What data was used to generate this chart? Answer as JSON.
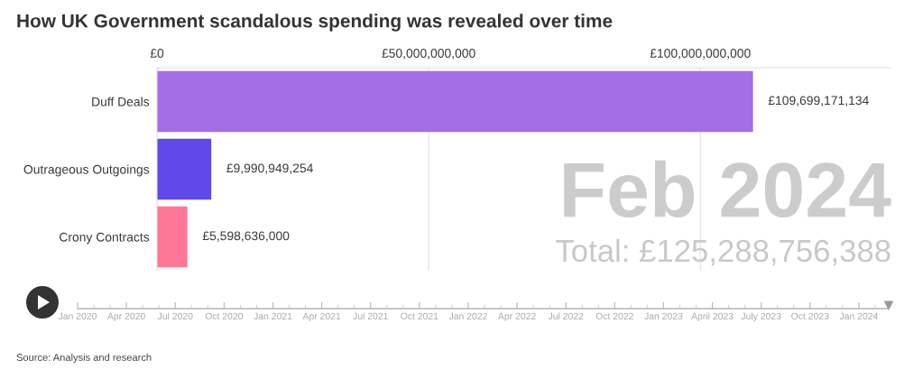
{
  "chart_data": [
    {
      "type": "bar",
      "orientation": "horizontal",
      "title": "How UK Government scandalous spending was revealed over time",
      "categories": [
        "Duff Deals",
        "Outrageous Outgoings",
        "Crony Contracts"
      ],
      "values": [
        109699171134,
        9990949254,
        5598636000
      ],
      "colors": [
        "#a46ee6",
        "#5f49e8",
        "#ff7796"
      ],
      "value_labels": [
        "£109,699,171,134",
        "£9,990,949,254",
        "£5,598,636,000"
      ],
      "xlim": [
        0,
        135000000000
      ],
      "xticks": [
        {
          "value": 0,
          "label": "£0"
        },
        {
          "value": 50000000000,
          "label": "£50,000,000,000"
        },
        {
          "value": 100000000000,
          "label": "£100,000,000,000"
        }
      ],
      "grid": "x",
      "annotations": [
        "Feb 2024",
        "Total: £125,288,756,388",
        "Source: Analysis and research"
      ]
    },
    {
      "type": "other",
      "annotations": [
        "Jan 2020",
        "Apr 2020",
        "Jul 2020",
        "Oct 2020",
        "Jan 2021",
        "Apr 2021",
        "Jul 2021",
        "Oct 2021",
        "Jan 2022",
        "Apr 2022",
        "Jul 2022",
        "Oct 2022",
        "Jan 2023",
        "April 2023",
        "July 2023",
        "Oct 2023",
        "Jan 2024"
      ]
    }
  ]
}
